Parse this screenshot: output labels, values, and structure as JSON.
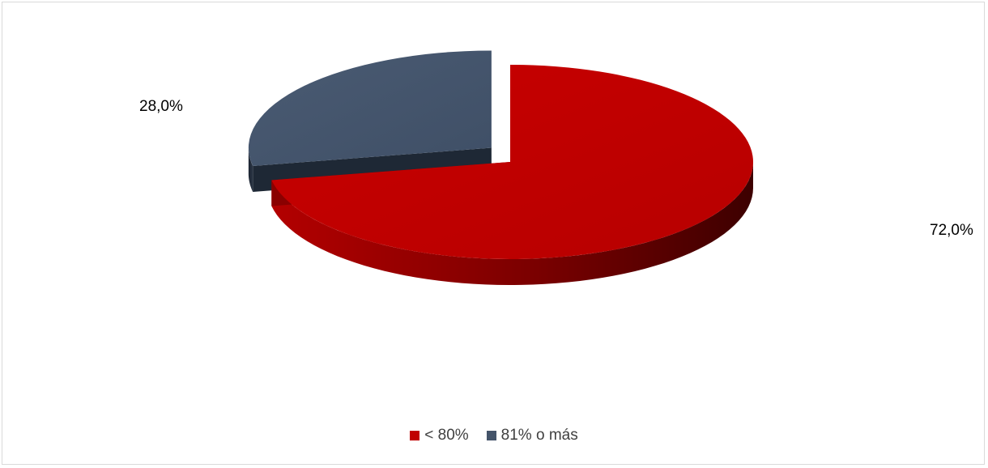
{
  "chart_data": {
    "type": "pie",
    "title": "",
    "categories": [
      "< 80%",
      "81% o más"
    ],
    "values": [
      72.0,
      28.0
    ],
    "data_labels": [
      "72,0%",
      "28,0%"
    ],
    "colors": [
      "#C00000",
      "#44546A"
    ],
    "legend_position": "bottom",
    "style": "3d-exploded"
  },
  "legend": {
    "items": [
      {
        "label": "< 80%",
        "color": "#C00000"
      },
      {
        "label": "81% o más",
        "color": "#44546A"
      }
    ]
  }
}
